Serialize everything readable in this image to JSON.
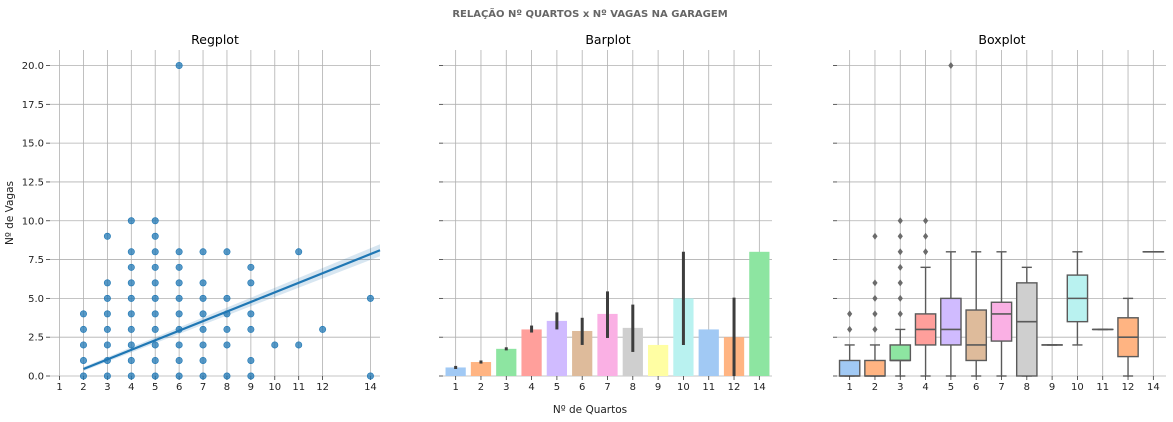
{
  "figure": {
    "suptitle": "RELAÇÃO Nº QUARTOS x Nº VAGAS NA GARAGEM",
    "shared_xlabel": "Nº de Quartos",
    "shared_ylabel": "Nº de Vagas"
  },
  "chart_data": [
    {
      "type": "scatter",
      "title": "Regplot",
      "xlabel": "",
      "ylabel": "Nº de Vagas",
      "xlim": [
        0.6,
        14.4
      ],
      "ylim": [
        0,
        21
      ],
      "xticks": [
        "1",
        "2",
        "3",
        "4",
        "5",
        "6",
        "7",
        "8",
        "9",
        "10",
        "11",
        "12",
        "14"
      ],
      "yticks": [
        "0.0",
        "2.5",
        "5.0",
        "7.5",
        "10.0",
        "12.5",
        "15.0",
        "17.5",
        "20.0"
      ],
      "grid": true,
      "points": [
        [
          2,
          0
        ],
        [
          2,
          1
        ],
        [
          2,
          2
        ],
        [
          2,
          3
        ],
        [
          2,
          4
        ],
        [
          3,
          0
        ],
        [
          3,
          1
        ],
        [
          3,
          2
        ],
        [
          3,
          3
        ],
        [
          3,
          4
        ],
        [
          3,
          5
        ],
        [
          3,
          6
        ],
        [
          3,
          9
        ],
        [
          4,
          0
        ],
        [
          4,
          1
        ],
        [
          4,
          2
        ],
        [
          4,
          3
        ],
        [
          4,
          4
        ],
        [
          4,
          5
        ],
        [
          4,
          6
        ],
        [
          4,
          7
        ],
        [
          4,
          8
        ],
        [
          4,
          10
        ],
        [
          5,
          0
        ],
        [
          5,
          1
        ],
        [
          5,
          2
        ],
        [
          5,
          3
        ],
        [
          5,
          4
        ],
        [
          5,
          5
        ],
        [
          5,
          6
        ],
        [
          5,
          7
        ],
        [
          5,
          8
        ],
        [
          5,
          9
        ],
        [
          5,
          10
        ],
        [
          6,
          0
        ],
        [
          6,
          1
        ],
        [
          6,
          2
        ],
        [
          6,
          3
        ],
        [
          6,
          4
        ],
        [
          6,
          5
        ],
        [
          6,
          6
        ],
        [
          6,
          7
        ],
        [
          6,
          8
        ],
        [
          6,
          20
        ],
        [
          7,
          0
        ],
        [
          7,
          1
        ],
        [
          7,
          2
        ],
        [
          7,
          3
        ],
        [
          7,
          4
        ],
        [
          7,
          5
        ],
        [
          7,
          6
        ],
        [
          7,
          8
        ],
        [
          8,
          0
        ],
        [
          8,
          2
        ],
        [
          8,
          3
        ],
        [
          8,
          4
        ],
        [
          8,
          5
        ],
        [
          8,
          8
        ],
        [
          9,
          0
        ],
        [
          9,
          1
        ],
        [
          9,
          3
        ],
        [
          9,
          4
        ],
        [
          9,
          6
        ],
        [
          9,
          7
        ],
        [
          10,
          2
        ],
        [
          11,
          2
        ],
        [
          11,
          8
        ],
        [
          12,
          3
        ],
        [
          14,
          0
        ],
        [
          14,
          5
        ]
      ],
      "regression_line": {
        "x": [
          2,
          14.4
        ],
        "y": [
          0.45,
          8.1
        ]
      },
      "color": "#1f77b4"
    },
    {
      "type": "bar",
      "title": "Barplot",
      "xlabel": "Nº de Quartos",
      "ylabel": "",
      "categories": [
        "1",
        "2",
        "3",
        "4",
        "5",
        "6",
        "7",
        "8",
        "9",
        "10",
        "11",
        "12",
        "14"
      ],
      "values": [
        0.55,
        0.9,
        1.75,
        3.0,
        3.55,
        2.9,
        4.0,
        3.1,
        2.0,
        5.0,
        3.0,
        2.5,
        8.0
      ],
      "error_bars": [
        [
          0.45,
          0.65
        ],
        [
          0.8,
          1.0
        ],
        [
          1.65,
          1.85
        ],
        [
          2.8,
          3.25
        ],
        [
          3.0,
          4.1
        ],
        [
          2.0,
          3.75
        ],
        [
          2.45,
          5.45
        ],
        [
          1.55,
          4.6
        ],
        [
          2.0,
          2.0
        ],
        [
          2.0,
          8.0
        ],
        [
          3.0,
          3.0
        ],
        [
          0.0,
          5.05
        ],
        [
          8.0,
          8.0
        ]
      ],
      "ylim": [
        0,
        21
      ],
      "grid": true,
      "colors": [
        "#a1c9f4",
        "#ffb482",
        "#8de5a1",
        "#ff9f9b",
        "#d0bbff",
        "#debb9b",
        "#fab0e4",
        "#cfcfcf",
        "#fffea3",
        "#b9f2f0",
        "#a1c9f4",
        "#ffb482",
        "#8de5a1"
      ]
    },
    {
      "type": "box",
      "title": "Boxplot",
      "xlabel": "",
      "ylabel": "",
      "categories": [
        "1",
        "2",
        "3",
        "4",
        "5",
        "6",
        "7",
        "8",
        "9",
        "10",
        "11",
        "12",
        "14"
      ],
      "boxes": [
        {
          "whislo": 0,
          "q1": 0,
          "med": 0,
          "q3": 1,
          "whishi": 2,
          "fliers": [
            3,
            4
          ]
        },
        {
          "whislo": 0,
          "q1": 0,
          "med": 0,
          "q3": 1,
          "whishi": 2,
          "fliers": [
            3,
            4,
            5,
            6,
            9
          ]
        },
        {
          "whislo": 0,
          "q1": 1,
          "med": 1,
          "q3": 2,
          "whishi": 3,
          "fliers": [
            4,
            5,
            6,
            7,
            8,
            9,
            10
          ]
        },
        {
          "whislo": 0,
          "q1": 2,
          "med": 3,
          "q3": 4,
          "whishi": 7,
          "fliers": [
            8,
            9,
            10
          ]
        },
        {
          "whislo": 0,
          "q1": 2,
          "med": 3,
          "q3": 5,
          "whishi": 8,
          "fliers": [
            20
          ]
        },
        {
          "whislo": 0,
          "q1": 1,
          "med": 2,
          "q3": 4.25,
          "whishi": 8,
          "fliers": []
        },
        {
          "whislo": 0,
          "q1": 2.25,
          "med": 4,
          "q3": 4.75,
          "whishi": 8,
          "fliers": []
        },
        {
          "whislo": 0,
          "q1": 0,
          "med": 3.5,
          "q3": 6,
          "whishi": 7,
          "fliers": []
        },
        {
          "whislo": 2,
          "q1": 2,
          "med": 2,
          "q3": 2,
          "whishi": 2,
          "fliers": []
        },
        {
          "whislo": 2,
          "q1": 3.5,
          "med": 5,
          "q3": 6.5,
          "whishi": 8,
          "fliers": []
        },
        {
          "whislo": 3,
          "q1": 3,
          "med": 3,
          "q3": 3,
          "whishi": 3,
          "fliers": []
        },
        {
          "whislo": 0,
          "q1": 1.25,
          "med": 2.5,
          "q3": 3.75,
          "whishi": 5,
          "fliers": []
        },
        {
          "whislo": 8,
          "q1": 8,
          "med": 8,
          "q3": 8,
          "whishi": 8,
          "fliers": []
        }
      ],
      "ylim": [
        0,
        21
      ],
      "grid": true,
      "colors": [
        "#a1c9f4",
        "#ffb482",
        "#8de5a1",
        "#ff9f9b",
        "#d0bbff",
        "#debb9b",
        "#fab0e4",
        "#cfcfcf",
        "#fffea3",
        "#b9f2f0",
        "#a1c9f4",
        "#ffb482",
        "#8de5a1"
      ]
    }
  ]
}
